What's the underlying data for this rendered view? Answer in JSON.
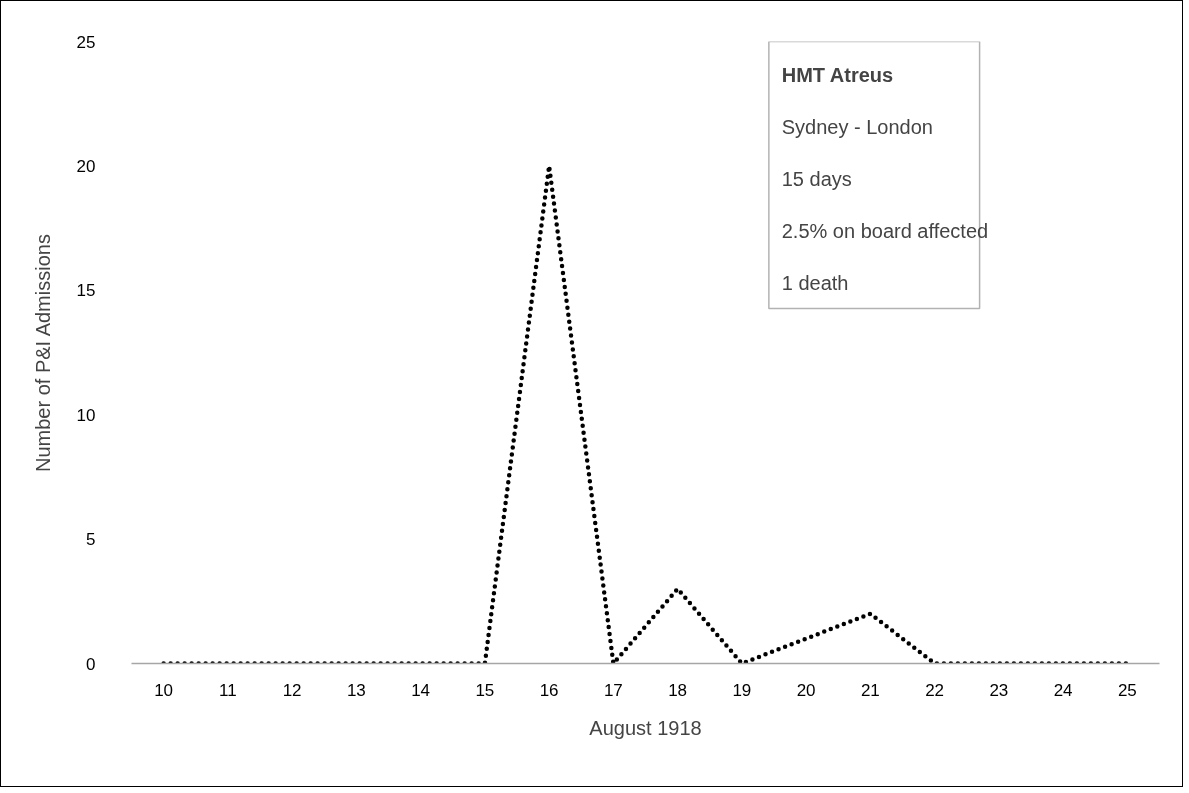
{
  "chart_data": {
    "type": "line",
    "xlabel": "August 1918",
    "ylabel": "Number of P&I Admissions",
    "categories": [
      "10",
      "11",
      "12",
      "13",
      "14",
      "15",
      "16",
      "17",
      "18",
      "19",
      "20",
      "21",
      "22",
      "23",
      "24",
      "25"
    ],
    "series": [
      {
        "color": "#000000",
        "values": [
          0,
          0,
          0,
          0,
          0,
          0,
          20,
          0,
          3,
          0,
          1,
          2,
          0,
          0,
          0,
          0
        ]
      }
    ],
    "ylim": [
      0,
      25
    ],
    "yticks": [
      0,
      5,
      10,
      15,
      20,
      25
    ],
    "grid": false,
    "marker": "none",
    "line_style": "dotted",
    "annotations": [
      "HMT Atreus",
      "Sydney - London",
      "15 days",
      "2.5% on board affected",
      "1 death"
    ]
  }
}
